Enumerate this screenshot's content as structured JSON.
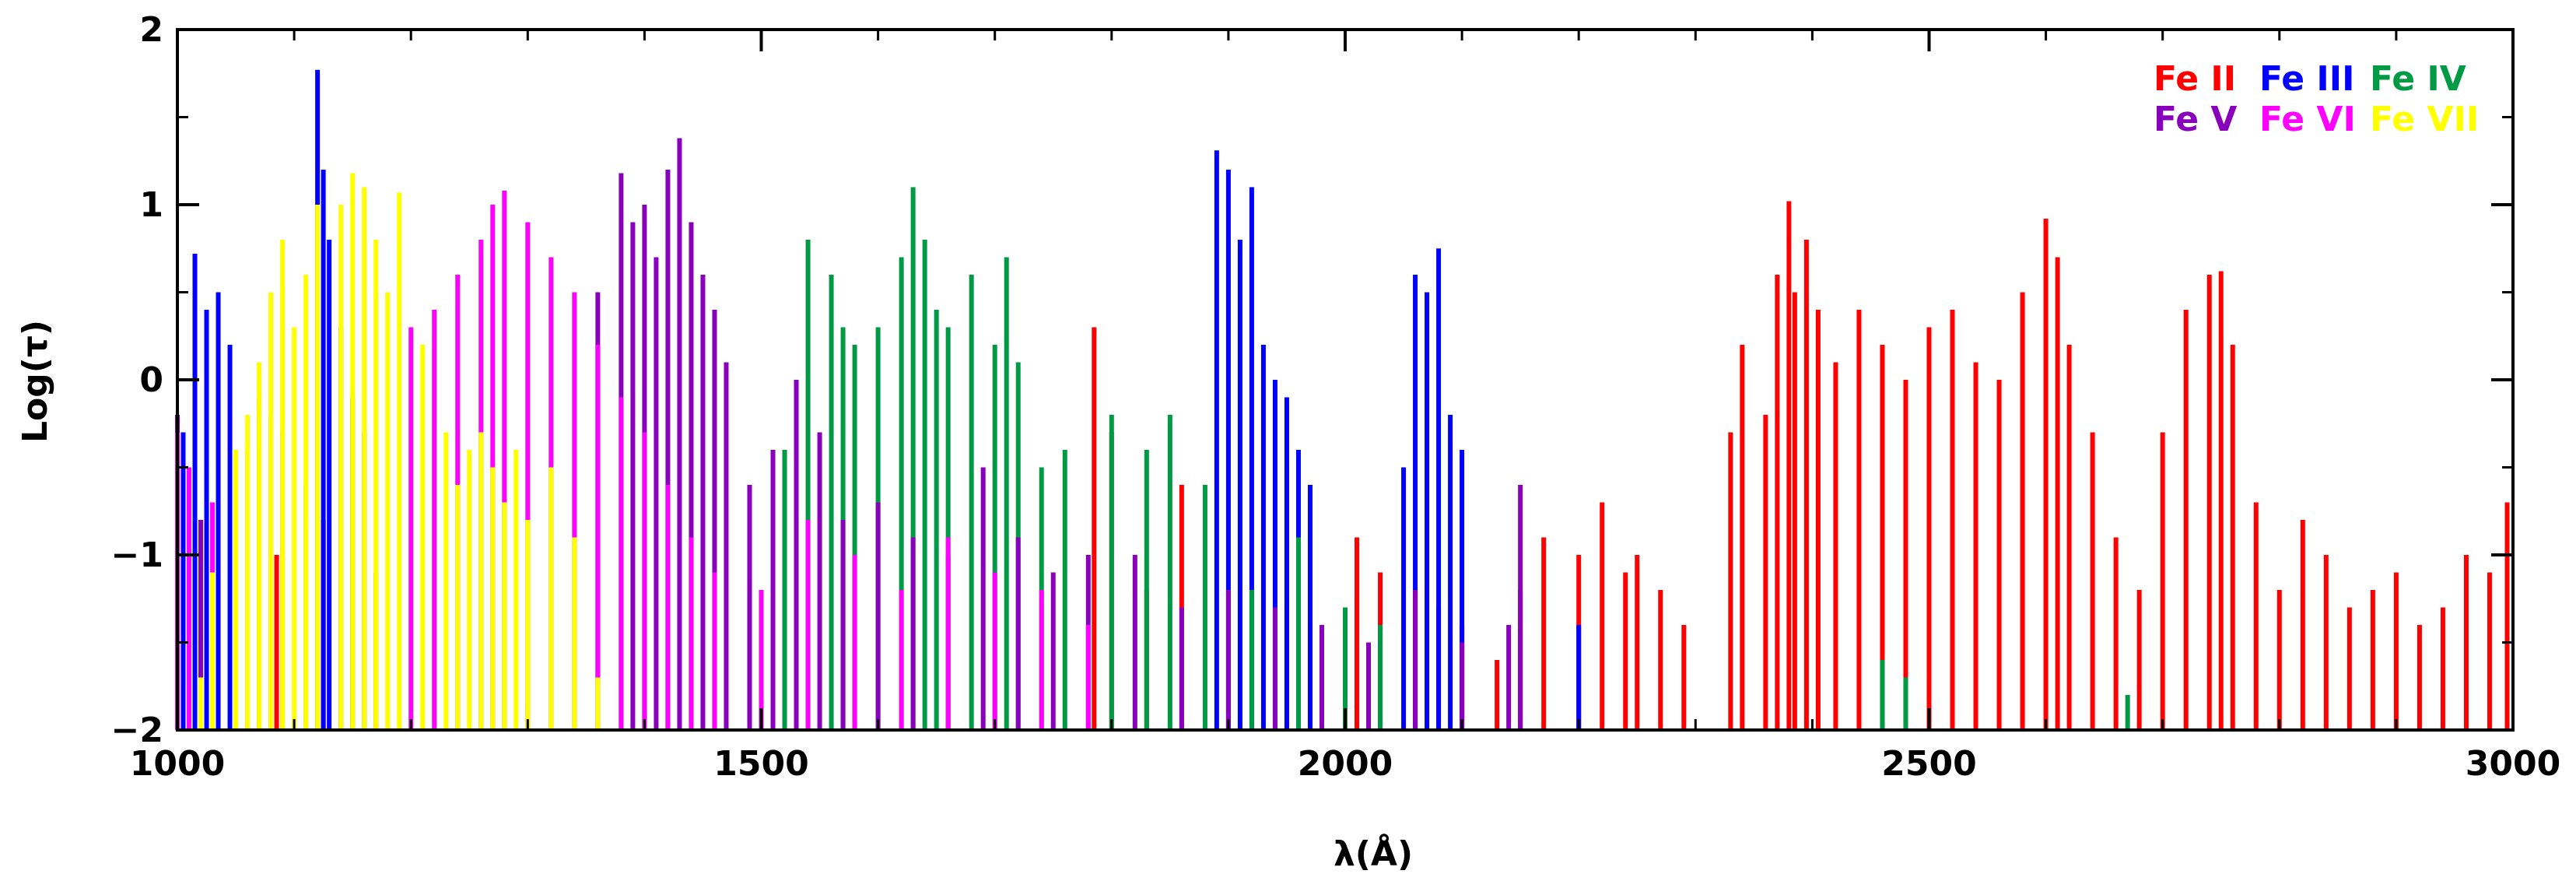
{
  "chart_data": {
    "type": "bar",
    "xlabel": "λ(Å)",
    "ylabel": "Log(τ)",
    "xlim": [
      1000,
      3000
    ],
    "ylim": [
      -2,
      2
    ],
    "xticks": [
      1000,
      1500,
      2000,
      2500,
      3000
    ],
    "yticks": [
      -2,
      -1,
      0,
      1,
      2
    ],
    "legend_position": "top-right",
    "grid": false,
    "series": [
      {
        "name": "Fe II",
        "color": "#ff0000",
        "x": [
          1070,
          1085,
          1125,
          1170,
          1785,
          1800,
          1830,
          1860,
          1950,
          2010,
          2030,
          2060,
          2080,
          2100,
          2130,
          2150,
          2170,
          2200,
          2220,
          2240,
          2250,
          2270,
          2290,
          2330,
          2340,
          2360,
          2370,
          2380,
          2385,
          2395,
          2405,
          2420,
          2440,
          2460,
          2480,
          2500,
          2520,
          2540,
          2560,
          2580,
          2600,
          2610,
          2620,
          2640,
          2660,
          2680,
          2700,
          2720,
          2740,
          2750,
          2760,
          2780,
          2800,
          2820,
          2840,
          2860,
          2880,
          2900,
          2920,
          2940,
          2960,
          2980,
          2995
        ],
        "values": [
          -0.1,
          -1.0,
          -0.8,
          -1.1,
          0.3,
          -0.3,
          -1.2,
          -0.6,
          -0.5,
          -0.9,
          -1.1,
          -1.2,
          -1.3,
          -1.4,
          -1.6,
          -1.2,
          -0.9,
          -1.0,
          -0.7,
          -1.1,
          -1.0,
          -1.2,
          -1.4,
          -0.3,
          0.2,
          -0.2,
          0.6,
          1.02,
          0.5,
          0.8,
          0.4,
          0.1,
          0.4,
          0.2,
          0.0,
          0.3,
          0.4,
          0.1,
          0.0,
          0.5,
          0.92,
          0.7,
          0.2,
          -0.3,
          -0.9,
          -1.2,
          -0.3,
          0.4,
          0.6,
          0.62,
          0.2,
          -0.7,
          -1.2,
          -0.8,
          -1.0,
          -1.3,
          -1.2,
          -1.1,
          -1.4,
          -1.3,
          -1.0,
          -1.1,
          -0.7
        ]
      },
      {
        "name": "Fe III",
        "color": "#0000ff",
        "x": [
          1005,
          1015,
          1025,
          1035,
          1045,
          1120,
          1125,
          1130,
          1140,
          1150,
          1160,
          1890,
          1900,
          1910,
          1920,
          1930,
          1940,
          1950,
          1960,
          1970,
          2050,
          2060,
          2070,
          2080,
          2090,
          2100,
          2200
        ],
        "values": [
          -0.3,
          0.72,
          0.4,
          0.5,
          0.2,
          1.77,
          1.2,
          0.8,
          0.3,
          -0.1,
          -0.3,
          1.31,
          1.2,
          0.8,
          1.1,
          0.2,
          0.0,
          -0.1,
          -0.4,
          -0.6,
          -0.5,
          0.6,
          0.5,
          0.75,
          -0.2,
          -0.4,
          -1.4
        ]
      },
      {
        "name": "Fe IV",
        "color": "#009944",
        "x": [
          1520,
          1540,
          1560,
          1570,
          1580,
          1600,
          1620,
          1630,
          1640,
          1650,
          1660,
          1680,
          1700,
          1710,
          1720,
          1740,
          1760,
          1800,
          1830,
          1850,
          1880,
          1920,
          1960,
          2000,
          2030,
          2460,
          2480,
          2670
        ],
        "values": [
          -0.4,
          0.8,
          0.6,
          0.3,
          0.2,
          0.3,
          0.7,
          1.1,
          0.8,
          0.4,
          0.3,
          0.6,
          0.2,
          0.7,
          0.1,
          -0.5,
          -0.4,
          -0.2,
          -0.4,
          -0.2,
          -0.6,
          -1.2,
          -0.9,
          -1.3,
          -1.4,
          -1.6,
          -1.7,
          -1.8
        ]
      },
      {
        "name": "Fe V",
        "color": "#8800bb",
        "x": [
          1000,
          1010,
          1020,
          1360,
          1380,
          1390,
          1400,
          1410,
          1420,
          1430,
          1440,
          1450,
          1460,
          1470,
          1490,
          1510,
          1530,
          1550,
          1570,
          1600,
          1630,
          1660,
          1690,
          1720,
          1750,
          1780,
          1820,
          1860,
          1900,
          1940,
          1980,
          2020,
          2060,
          2100,
          2140,
          2150
        ],
        "values": [
          -0.2,
          -0.5,
          -0.8,
          0.5,
          1.18,
          0.9,
          1.0,
          0.7,
          1.2,
          1.38,
          0.9,
          0.6,
          0.4,
          0.1,
          -0.6,
          -0.4,
          0.0,
          -0.3,
          -0.8,
          -0.7,
          -0.9,
          -1.0,
          -0.5,
          -0.9,
          -1.1,
          -1.0,
          -1.0,
          -1.3,
          -1.2,
          -1.3,
          -1.4,
          -1.5,
          -1.2,
          -1.5,
          -1.4,
          -0.6
        ]
      },
      {
        "name": "Fe VI",
        "color": "#ff00ff",
        "x": [
          1000,
          1010,
          1030,
          1060,
          1080,
          1090,
          1110,
          1200,
          1220,
          1240,
          1260,
          1270,
          1280,
          1300,
          1320,
          1340,
          1360,
          1380,
          1400,
          1420,
          1440,
          1460,
          1500,
          1540,
          1580,
          1620,
          1660,
          1700,
          1740,
          1780
        ],
        "values": [
          -0.3,
          -0.5,
          -0.7,
          -0.4,
          -0.2,
          -0.3,
          -0.6,
          0.3,
          0.4,
          0.6,
          0.8,
          1.0,
          1.08,
          0.9,
          0.7,
          0.5,
          0.2,
          -0.1,
          -0.3,
          -0.6,
          -0.9,
          -1.1,
          -1.2,
          -0.8,
          -1.0,
          -1.2,
          -0.9,
          -1.1,
          -1.2,
          -1.4
        ]
      },
      {
        "name": "Fe VII",
        "color": "#ffff00",
        "x": [
          1020,
          1030,
          1050,
          1060,
          1070,
          1080,
          1090,
          1100,
          1110,
          1120,
          1140,
          1150,
          1160,
          1170,
          1180,
          1190,
          1210,
          1230,
          1240,
          1250,
          1260,
          1270,
          1280,
          1290,
          1300,
          1320,
          1340,
          1360
        ],
        "values": [
          -1.7,
          -1.1,
          -0.4,
          -0.2,
          0.1,
          0.5,
          0.8,
          0.3,
          0.6,
          1.0,
          1.0,
          1.18,
          1.1,
          0.8,
          0.5,
          1.07,
          0.2,
          -0.3,
          -0.6,
          -0.4,
          -0.3,
          -0.5,
          -0.7,
          -0.4,
          -0.8,
          -0.5,
          -0.9,
          -1.7
        ]
      }
    ]
  }
}
